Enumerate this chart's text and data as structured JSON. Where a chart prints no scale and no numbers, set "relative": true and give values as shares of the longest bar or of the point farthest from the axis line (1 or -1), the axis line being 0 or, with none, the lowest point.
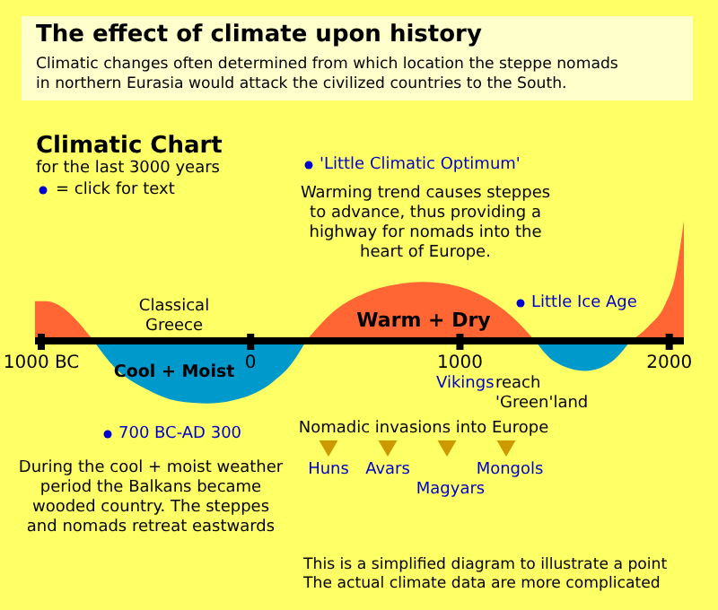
{
  "chart_data": {
    "type": "area",
    "relative": true,
    "title": "The effect of climate upon history",
    "subtitle": "Climatic changes often determined from which location the steppe nomads\nin northern Eurasia would attack the civilized countries to the South.",
    "xlim": [
      -1030,
      2070
    ],
    "xticks": [
      {
        "value": -1000,
        "label": "1000 BC"
      },
      0,
      1000,
      2000
    ],
    "series": [
      {
        "color": "#ff6633",
        "x": [
          -1030,
          -975,
          -900,
          -820,
          -750
        ],
        "values": [
          0.33,
          0.33,
          0.28,
          0.15,
          0
        ]
      },
      {
        "color": "#0099cc",
        "x": [
          -750,
          -650,
          -500,
          -350,
          -205,
          -50,
          100,
          200,
          265
        ],
        "values": [
          0,
          -0.22,
          -0.4,
          -0.5,
          -0.52,
          -0.48,
          -0.35,
          -0.18,
          0
        ]
      },
      {
        "color": "#ff6633",
        "x": [
          265,
          400,
          550,
          700,
          820,
          950,
          1100,
          1250,
          1360
        ],
        "values": [
          0,
          0.25,
          0.4,
          0.47,
          0.49,
          0.47,
          0.38,
          0.2,
          0
        ]
      },
      {
        "color": "#0099cc",
        "x": [
          1360,
          1450,
          1600,
          1720,
          1815
        ],
        "values": [
          0,
          -0.17,
          -0.25,
          -0.18,
          0
        ]
      },
      {
        "color": "#ff6633",
        "x": [
          1815,
          1900,
          1980,
          2030,
          2070
        ],
        "values": [
          0,
          0.12,
          0.3,
          0.55,
          1
        ]
      }
    ],
    "annotations": [
      "Climatic Chart",
      "for the last 3000 years",
      "= click for text",
      "'Little Climatic Optimum'",
      "Warming trend causes steppes\nto advance, thus providing a\nhighway for nomads into the\nheart of Europe.",
      "Classical\nGreece",
      "Warm + Dry",
      "Cool + Moist",
      "Little Ice Age",
      "Vikings",
      "reach\n'Green'land",
      "700 BC-AD 300",
      "During the cool + moist weather\nperiod the Balkans became\nwooded country. The steppes\nand nomads retreat eastwards",
      "Nomadic invasions into Europe",
      "Huns",
      "Avars",
      "Magyars",
      "Mongols",
      "This is a simplified diagram to illustrate a point\nThe actual climate data are more complicated"
    ]
  }
}
